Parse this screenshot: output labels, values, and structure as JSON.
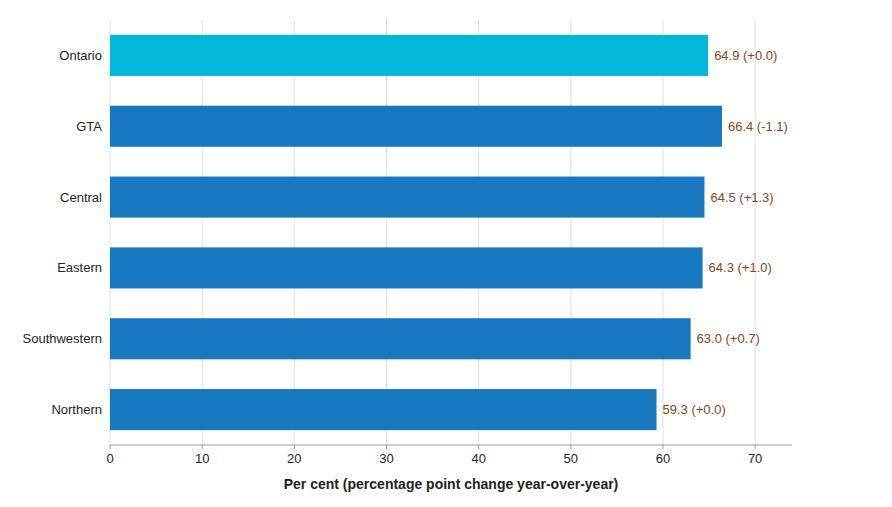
{
  "chart_data": {
    "type": "bar",
    "orientation": "horizontal",
    "categories": [
      "Ontario",
      "GTA",
      "Central",
      "Eastern",
      "Southwestern",
      "Northern"
    ],
    "values": [
      64.9,
      66.4,
      64.5,
      64.3,
      63.0,
      59.3
    ],
    "value_labels": [
      "64.9 (+0.0)",
      "66.4 (-1.1)",
      "64.5 (+1.3)",
      "64.3 (+1.0)",
      "63.0 (+0.7)",
      "59.3 (+0.0)"
    ],
    "data_labels": true,
    "colors": [
      "#00b8d9",
      "#1878bf",
      "#1878bf",
      "#1878bf",
      "#1878bf",
      "#1878bf"
    ],
    "x_label": "Per cent (percentage point change year-over-year)",
    "xlim": [
      0,
      74
    ],
    "xticks": [
      0,
      10,
      20,
      30,
      40,
      50,
      60,
      70
    ],
    "grid": true
  }
}
